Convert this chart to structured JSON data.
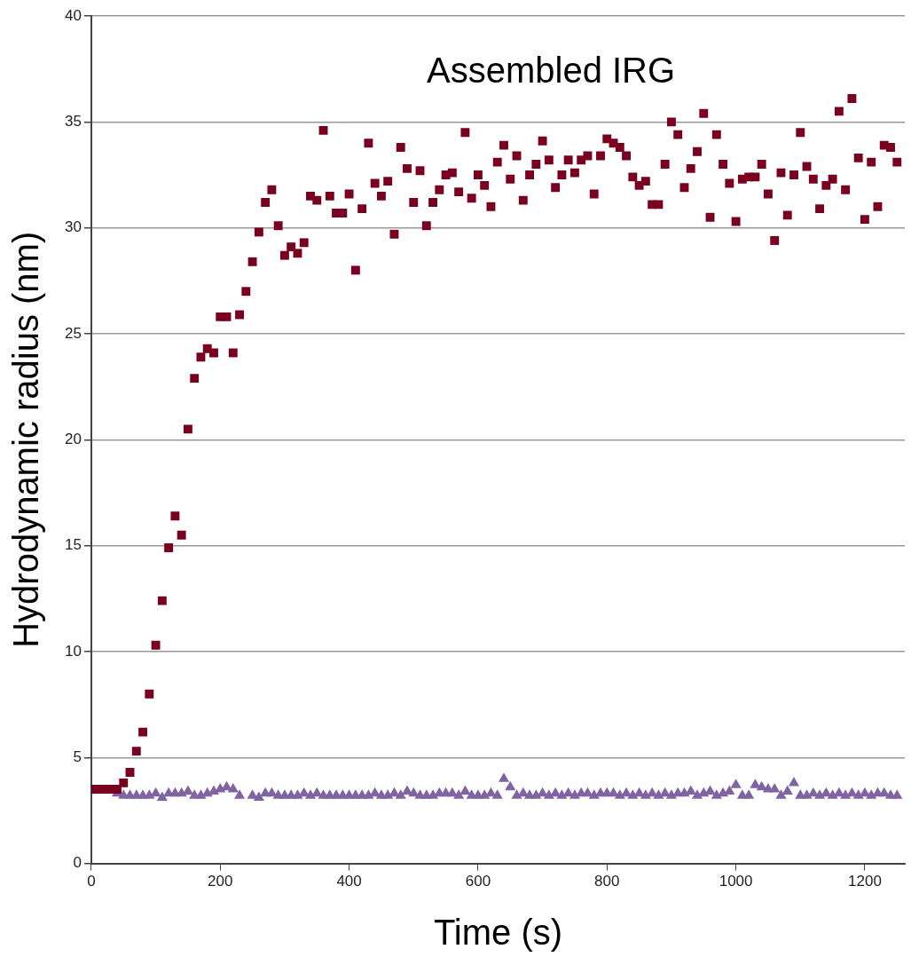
{
  "chart_data": {
    "type": "scatter",
    "annotations": [
      "Assembled IRG"
    ],
    "xlabel": "Time (s)",
    "ylabel": "Hydrodynamic radius (nm)",
    "xlim": [
      0,
      1262
    ],
    "xticks": [
      0,
      200,
      400,
      600,
      800,
      1000,
      1200
    ],
    "ylim": [
      0,
      40
    ],
    "yticks": [
      0,
      5,
      10,
      15,
      20,
      25,
      30,
      35,
      40
    ],
    "grid": "y",
    "legend": false,
    "x": [
      0,
      10,
      20,
      30,
      40,
      50,
      60,
      70,
      80,
      90,
      100,
      110,
      120,
      130,
      140,
      150,
      160,
      170,
      180,
      190,
      200,
      210,
      220,
      230,
      240,
      250,
      260,
      270,
      280,
      290,
      300,
      310,
      320,
      330,
      340,
      350,
      360,
      370,
      380,
      390,
      400,
      410,
      420,
      430,
      440,
      450,
      460,
      470,
      480,
      490,
      500,
      510,
      520,
      530,
      540,
      550,
      560,
      570,
      580,
      590,
      600,
      610,
      620,
      630,
      640,
      650,
      660,
      670,
      680,
      690,
      700,
      710,
      720,
      730,
      740,
      750,
      760,
      770,
      780,
      790,
      800,
      810,
      820,
      830,
      840,
      850,
      860,
      870,
      880,
      890,
      900,
      910,
      920,
      930,
      940,
      950,
      960,
      970,
      980,
      990,
      1000,
      1010,
      1020,
      1030,
      1040,
      1050,
      1060,
      1070,
      1080,
      1090,
      1100,
      1110,
      1120,
      1130,
      1140,
      1150,
      1160,
      1170,
      1180,
      1190,
      1200,
      1210,
      1220,
      1230,
      1240,
      1250
    ],
    "series": [
      {
        "color": "#7a0020",
        "marker": "square",
        "values": [
          3.5,
          3.5,
          3.5,
          3.5,
          3.5,
          3.8,
          4.3,
          5.3,
          6.2,
          8.0,
          10.3,
          12.4,
          14.9,
          16.4,
          15.5,
          20.5,
          22.9,
          23.9,
          24.3,
          24.1,
          25.8,
          25.8,
          24.1,
          25.9,
          27.0,
          28.4,
          29.8,
          31.2,
          31.8,
          30.1,
          28.7,
          29.1,
          28.8,
          29.3,
          31.5,
          31.3,
          34.6,
          31.5,
          30.7,
          30.7,
          31.6,
          28.0,
          30.9,
          34.0,
          32.1,
          31.5,
          32.2,
          29.7,
          33.8,
          32.8,
          31.2,
          32.7,
          30.1,
          31.2,
          31.8,
          32.5,
          32.6,
          31.7,
          34.5,
          31.4,
          32.5,
          32.0,
          31.0,
          33.1,
          33.9,
          32.3,
          33.4,
          31.3,
          32.5,
          33.0,
          34.1,
          33.2,
          31.9,
          32.5,
          33.2,
          32.6,
          33.2,
          33.4,
          31.6,
          33.4,
          34.2,
          34.0,
          33.8,
          33.4,
          32.4,
          32.0,
          32.2,
          31.1,
          31.1,
          33.0,
          35.0,
          34.4,
          31.9,
          32.8,
          33.6,
          35.4,
          30.5,
          34.4,
          33.0,
          32.1,
          30.3,
          32.3,
          32.4,
          32.4,
          33.0,
          31.6,
          29.4,
          32.6,
          30.6,
          32.5,
          34.5,
          32.9,
          32.3,
          30.9,
          32.0,
          32.3,
          35.5,
          31.8,
          36.1,
          33.3,
          30.4,
          33.1,
          31.0,
          33.9,
          33.8,
          33.1
        ]
      },
      {
        "color": "#8064a2",
        "marker": "triangle",
        "values": [
          null,
          null,
          null,
          null,
          3.3,
          3.2,
          3.2,
          3.2,
          3.2,
          3.2,
          3.3,
          3.1,
          3.3,
          3.3,
          3.3,
          3.4,
          3.2,
          3.2,
          3.3,
          3.4,
          3.5,
          3.6,
          3.5,
          3.2,
          null,
          3.2,
          3.1,
          3.3,
          3.3,
          3.2,
          3.2,
          3.2,
          3.2,
          3.3,
          3.2,
          3.3,
          3.2,
          3.2,
          3.2,
          3.2,
          3.2,
          3.2,
          3.2,
          3.2,
          3.3,
          3.2,
          3.2,
          3.3,
          3.2,
          3.4,
          3.3,
          3.2,
          3.2,
          3.2,
          3.3,
          3.3,
          3.3,
          3.2,
          3.4,
          3.2,
          3.2,
          3.2,
          3.3,
          3.2,
          4.0,
          3.6,
          3.2,
          3.3,
          3.2,
          3.2,
          3.3,
          3.2,
          3.3,
          3.2,
          3.3,
          3.2,
          3.3,
          3.3,
          3.2,
          3.3,
          3.3,
          3.3,
          3.2,
          3.3,
          3.2,
          3.3,
          3.2,
          3.3,
          3.2,
          3.3,
          3.2,
          3.3,
          3.3,
          3.4,
          3.2,
          3.3,
          3.4,
          3.2,
          3.3,
          3.4,
          3.7,
          3.2,
          3.2,
          3.7,
          3.6,
          3.5,
          3.5,
          3.2,
          3.4,
          3.8,
          3.2,
          3.2,
          3.3,
          3.2,
          3.3,
          3.2,
          3.3,
          3.2,
          3.3,
          3.2,
          3.3,
          3.2,
          3.3,
          3.3,
          3.2,
          3.2
        ]
      }
    ]
  }
}
